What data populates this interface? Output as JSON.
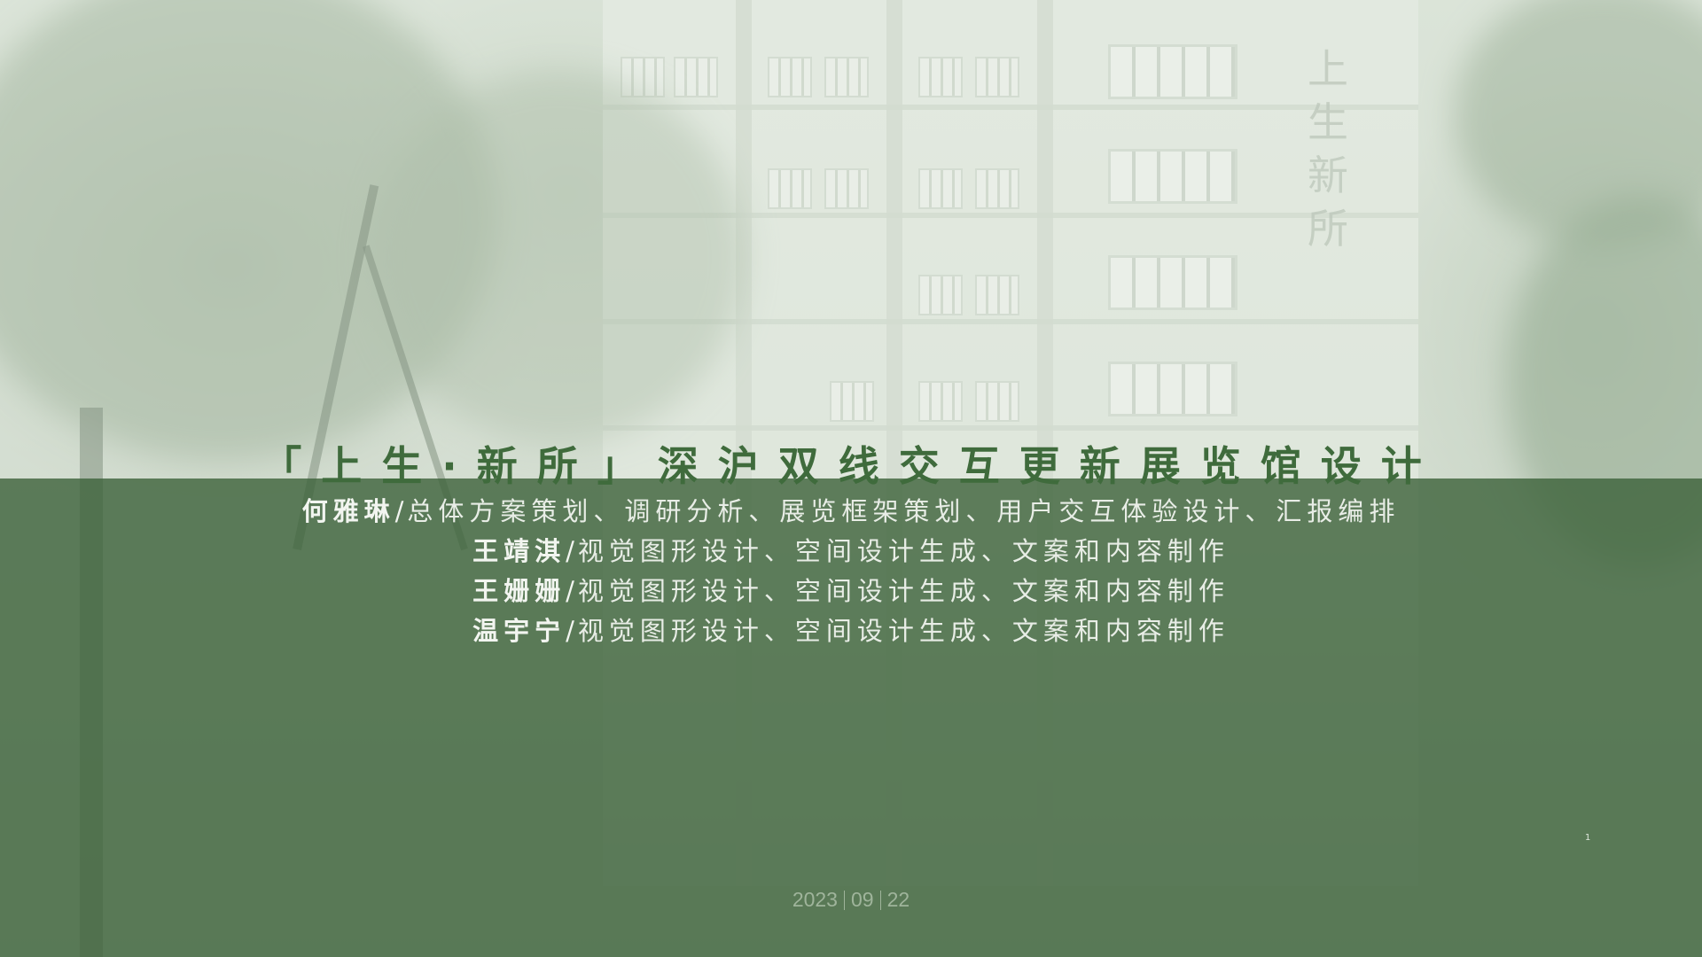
{
  "slide": {
    "title": "「上生·新所」深沪双线交互更新展览馆设计",
    "building_sign": [
      "上",
      "生",
      "新",
      "所"
    ],
    "credits": [
      {
        "name": "何雅琳",
        "separator": "/",
        "role": "总体方案策划、调研分析、展览框架策划、用户交互体验设计、汇报编排"
      },
      {
        "name": "王靖淇",
        "separator": "/",
        "role": "视觉图形设计、空间设计生成、文案和内容制作"
      },
      {
        "name": "王姗姗",
        "separator": "/",
        "role": "视觉图形设计、空间设计生成、文案和内容制作"
      },
      {
        "name": "温宇宁",
        "separator": "/",
        "role": "视觉图形设计、空间设计生成、文案和内容制作"
      }
    ],
    "page_number": "1",
    "date": {
      "year": "2023",
      "month": "09",
      "day": "22"
    }
  },
  "colors": {
    "overlay_green": "#3c623a",
    "title_green": "#3f6b3c",
    "credit_text": "#f2f5f0",
    "date_text": "#9fb49b"
  }
}
